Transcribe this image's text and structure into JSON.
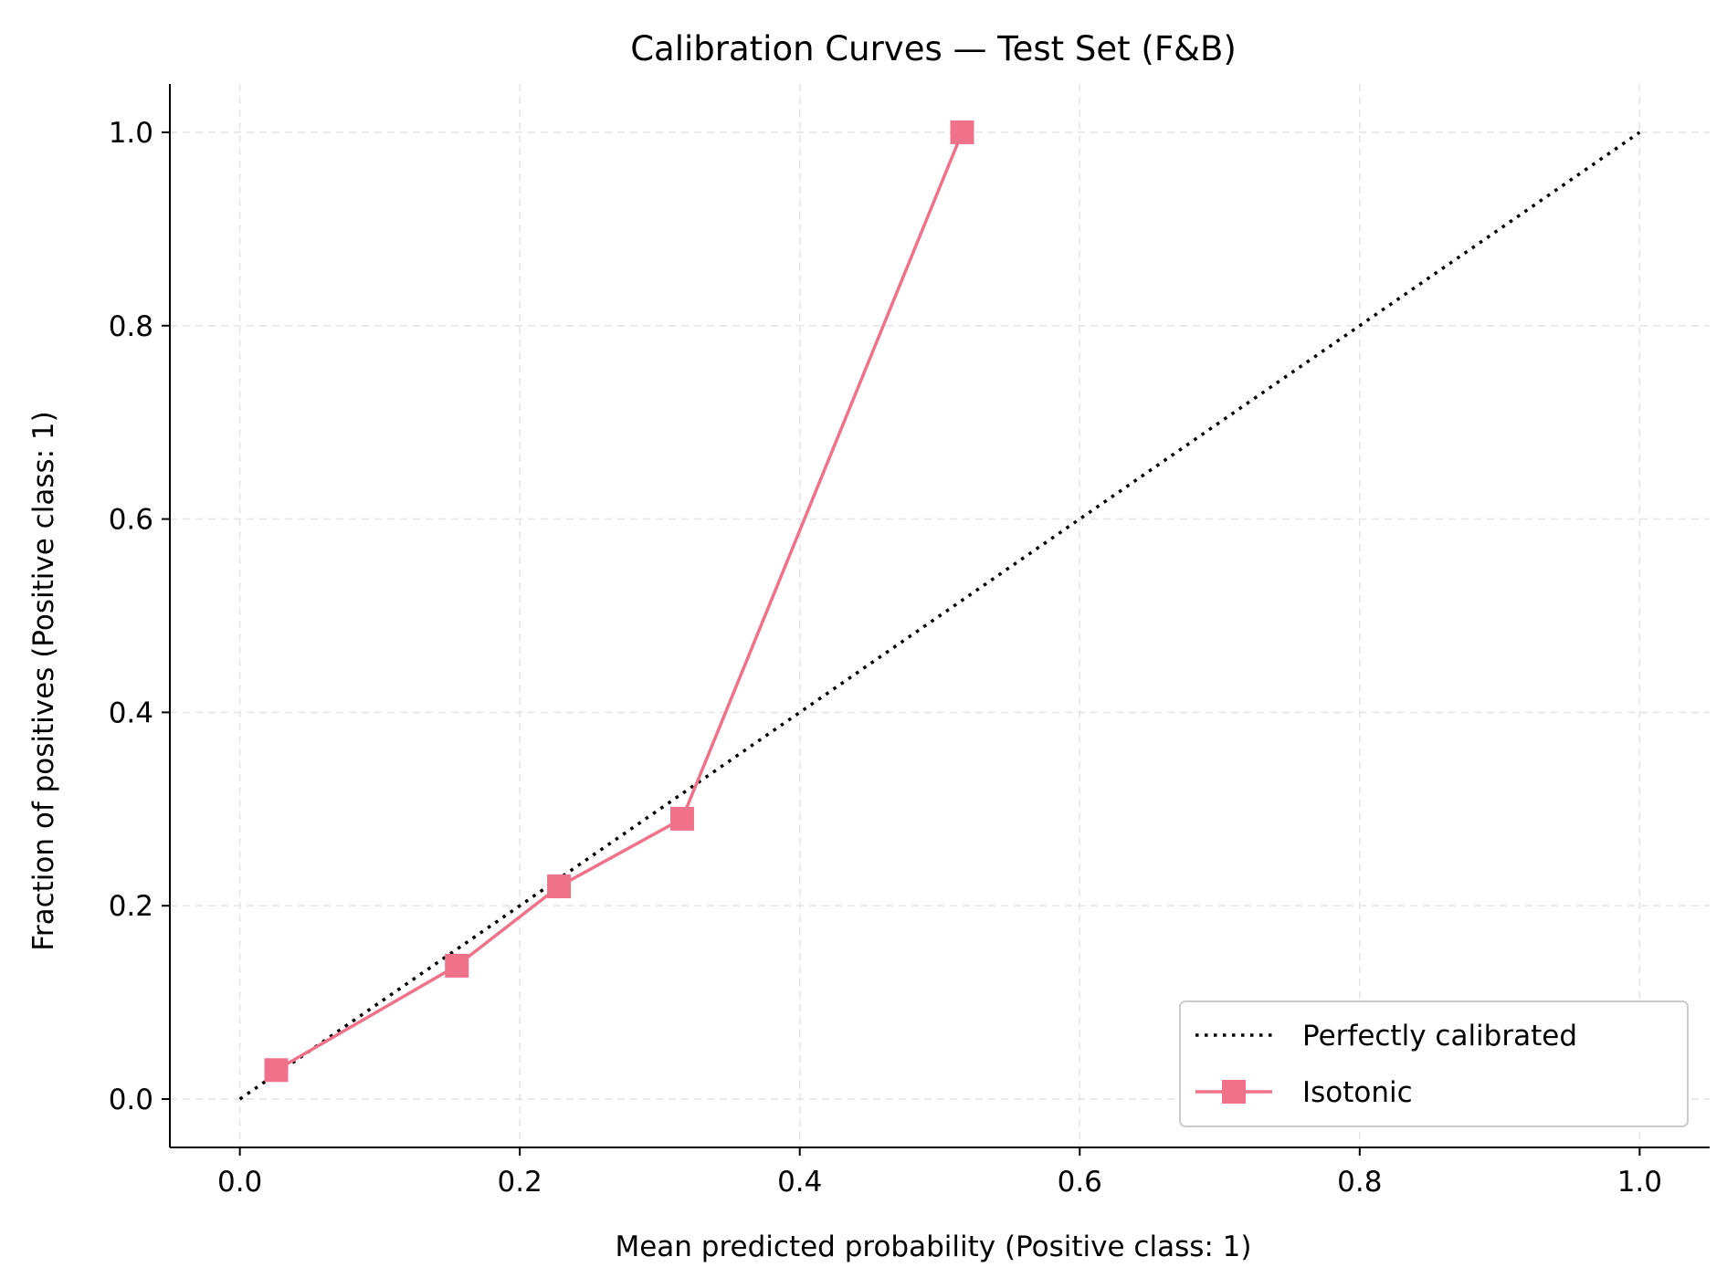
{
  "chart_data": {
    "type": "line",
    "title": "Calibration Curves — Test Set (F&B)",
    "xlabel": "Mean predicted probability (Positive class: 1)",
    "ylabel": "Fraction of positives (Positive class: 1)",
    "xlim": [
      -0.05,
      1.05
    ],
    "ylim": [
      -0.05,
      1.05
    ],
    "xticks": [
      "0.0",
      "0.2",
      "0.4",
      "0.6",
      "0.8",
      "1.0"
    ],
    "yticks": [
      "0.0",
      "0.2",
      "0.4",
      "0.6",
      "0.8",
      "1.0"
    ],
    "grid": true,
    "legend_position": "lower-right",
    "series": [
      {
        "name": "Perfectly calibrated",
        "style": "dotted",
        "color": "#000000",
        "x": [
          0.0,
          1.0
        ],
        "y": [
          0.0,
          1.0
        ]
      },
      {
        "name": "Isotonic",
        "style": "solid",
        "marker": "square",
        "color": "#f0728a",
        "x": [
          0.026,
          0.155,
          0.228,
          0.316,
          0.516
        ],
        "y": [
          0.03,
          0.138,
          0.22,
          0.29,
          1.0
        ]
      }
    ]
  }
}
